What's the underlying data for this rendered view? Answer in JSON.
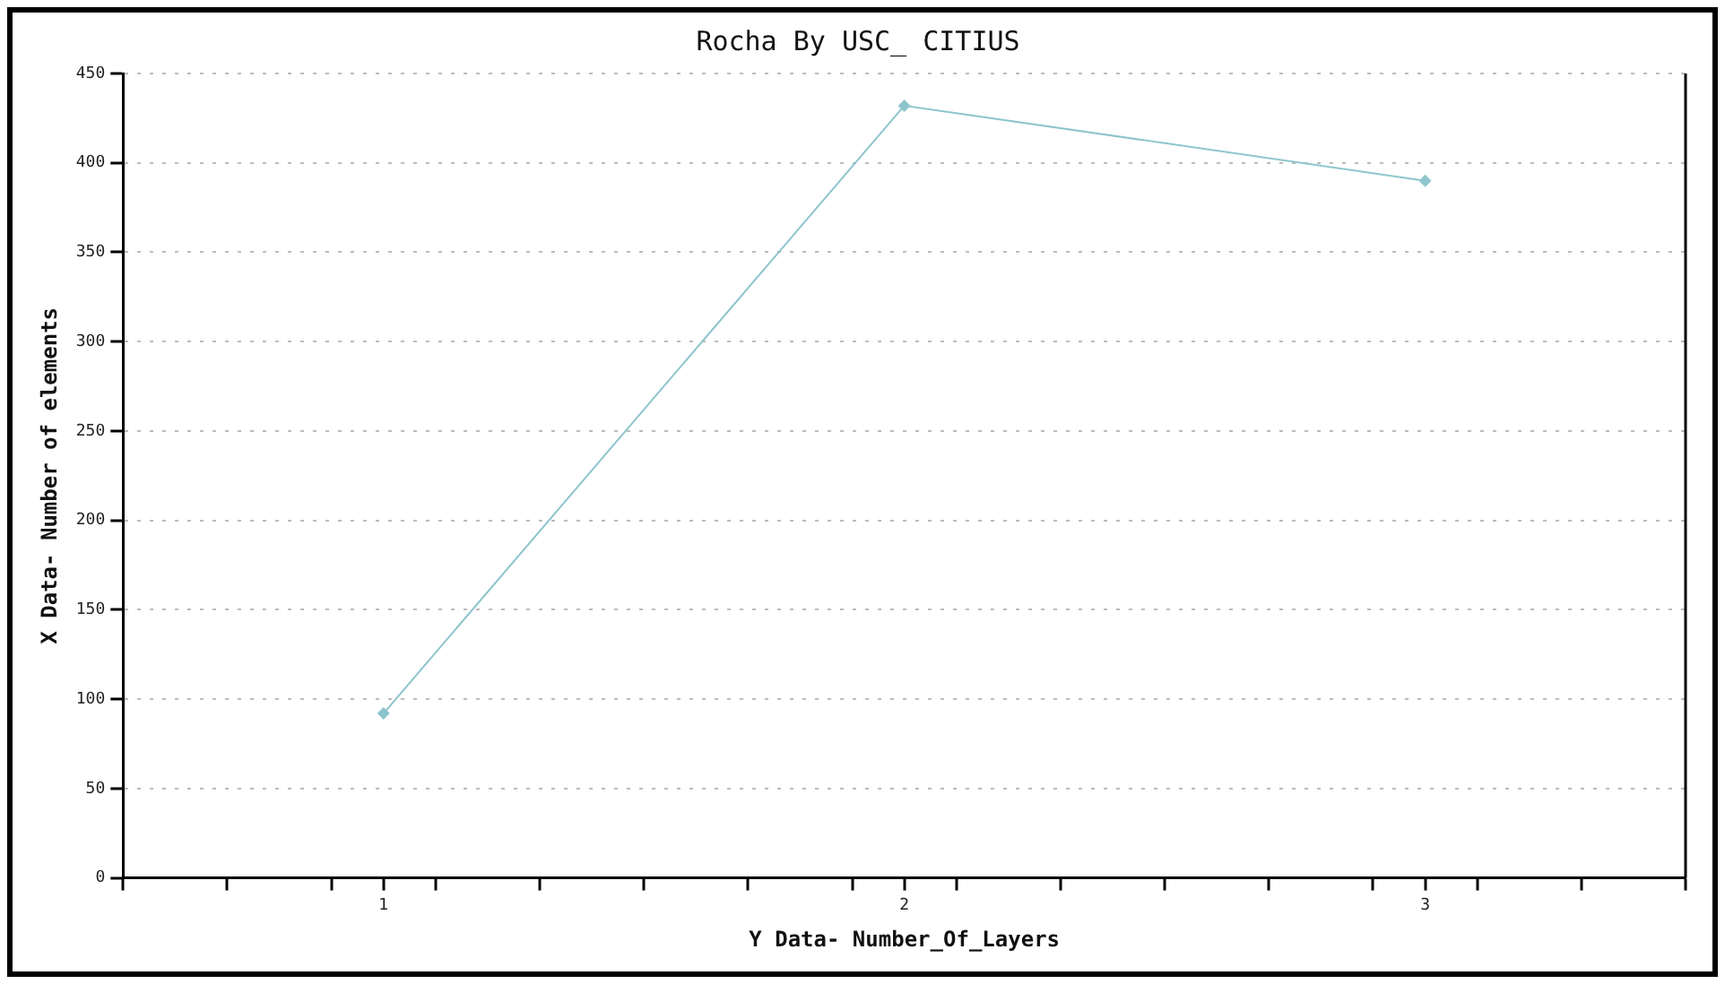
{
  "chart_data": {
    "type": "line",
    "title": "Rocha By USC_ CITIUS",
    "xlabel": "Y Data- Number_Of_Layers",
    "ylabel": "X Data- Number of elements",
    "x": [
      1,
      2,
      3
    ],
    "series": [
      {
        "color": "#8ec5cc",
        "values": [
          92,
          432,
          390
        ]
      }
    ],
    "xlim": [
      0.5,
      3.5
    ],
    "xticks": [
      {
        "value": 0.5,
        "label": null
      },
      {
        "value": 0.7,
        "label": null
      },
      {
        "value": 0.9,
        "label": null
      },
      1,
      {
        "value": 1.1,
        "label": null
      },
      {
        "value": 1.3,
        "label": null
      },
      {
        "value": 1.5,
        "label": null
      },
      {
        "value": 1.7,
        "label": null
      },
      {
        "value": 1.9,
        "label": null
      },
      2,
      {
        "value": 2.1,
        "label": null
      },
      {
        "value": 2.3,
        "label": null
      },
      {
        "value": 2.5,
        "label": null
      },
      {
        "value": 2.7,
        "label": null
      },
      {
        "value": 2.9,
        "label": null
      },
      3,
      {
        "value": 3.1,
        "label": null
      },
      {
        "value": 3.3,
        "label": null
      },
      {
        "value": 3.5,
        "label": null
      }
    ],
    "ylim": [
      0,
      450
    ],
    "yticks": [
      0,
      50,
      100,
      150,
      200,
      250,
      300,
      350,
      400,
      450
    ],
    "grid": "y",
    "legend": false,
    "marker": "diamond",
    "line_style": "solid"
  }
}
